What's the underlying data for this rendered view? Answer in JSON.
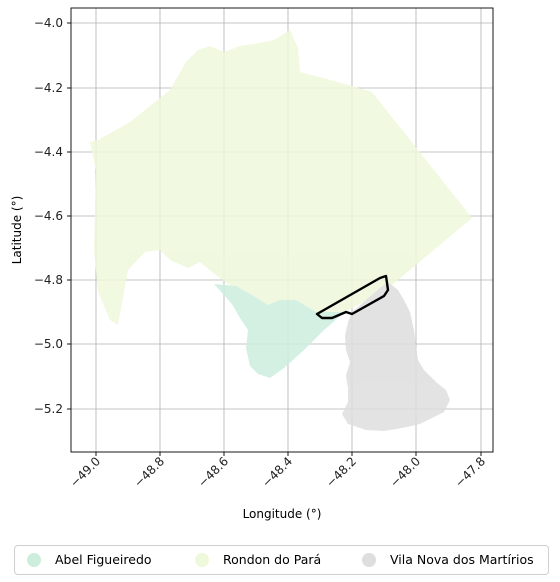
{
  "map": {
    "xlabel": "Longitude (°)",
    "ylabel": "Latitude (°)",
    "x_ticks": [
      "−49.0",
      "−48.8",
      "−48.6",
      "−48.4",
      "−48.2",
      "−48.0",
      "−47.8"
    ],
    "y_ticks": [
      "−4.0",
      "−4.2",
      "−4.4",
      "−4.6",
      "−4.8",
      "−5.0",
      "−5.2"
    ],
    "xlim": [
      -49.08,
      -47.76
    ],
    "ylim": [
      -5.34,
      -3.96
    ],
    "grid": true,
    "regions": [
      {
        "name": "Rondon do Pará",
        "color": "#eef8db"
      },
      {
        "name": "Abel Figueiredo",
        "color": "#cdeedd"
      },
      {
        "name": "Vila Nova dos Martírios",
        "color": "#dedede"
      }
    ],
    "outline_color": "#000000"
  },
  "legend": {
    "items": [
      {
        "label": "Abel Figueiredo",
        "color": "#cdeedd"
      },
      {
        "label": "Rondon do Pará",
        "color": "#eef8db"
      },
      {
        "label": "Vila Nova dos Martírios",
        "color": "#dedede"
      }
    ]
  }
}
